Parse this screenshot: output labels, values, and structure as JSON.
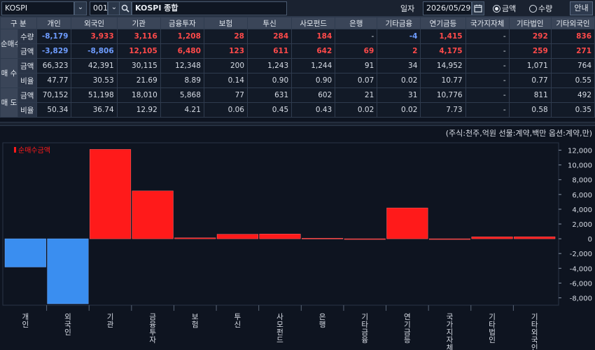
{
  "toolbar": {
    "market": "KOSPI",
    "code": "001",
    "index_name": "KOSPI 종합",
    "date_label": "일자",
    "date": "2026/05/29",
    "radio_amount": "금액",
    "radio_qty": "수량",
    "selected": "금액",
    "help": "안내"
  },
  "table": {
    "header_first": "구 분",
    "columns": [
      "개인",
      "외국인",
      "기관",
      "금융투자",
      "보험",
      "투신",
      "사모펀드",
      "은행",
      "기타금융",
      "연기금등",
      "국가지자체",
      "기타법인",
      "기타외국인"
    ],
    "groups": [
      {
        "label": "순매수",
        "rows": [
          {
            "sub": "수량",
            "values": [
              "-8,179",
              "3,933",
              "3,116",
              "1,208",
              "28",
              "284",
              "184",
              "-",
              "-4",
              "1,415",
              "-",
              "292",
              "836"
            ],
            "colored": true
          },
          {
            "sub": "금액",
            "values": [
              "-3,829",
              "-8,806",
              "12,105",
              "6,480",
              "123",
              "611",
              "642",
              "69",
              "2",
              "4,175",
              "-",
              "259",
              "271"
            ],
            "colored": true
          }
        ]
      },
      {
        "label": "매 수",
        "rows": [
          {
            "sub": "금액",
            "values": [
              "66,323",
              "42,391",
              "30,115",
              "12,348",
              "200",
              "1,243",
              "1,244",
              "91",
              "34",
              "14,952",
              "-",
              "1,071",
              "764"
            ],
            "colored": false
          },
          {
            "sub": "비율",
            "values": [
              "47.77",
              "30.53",
              "21.69",
              "8.89",
              "0.14",
              "0.90",
              "0.90",
              "0.07",
              "0.02",
              "10.77",
              "-",
              "0.77",
              "0.55"
            ],
            "colored": false
          }
        ]
      },
      {
        "label": "매 도",
        "rows": [
          {
            "sub": "금액",
            "values": [
              "70,152",
              "51,198",
              "18,010",
              "5,868",
              "77",
              "631",
              "602",
              "21",
              "31",
              "10,776",
              "-",
              "811",
              "492"
            ],
            "colored": false
          },
          {
            "sub": "비율",
            "values": [
              "50.34",
              "36.74",
              "12.92",
              "4.21",
              "0.06",
              "0.45",
              "0.43",
              "0.02",
              "0.02",
              "7.73",
              "-",
              "0.58",
              "0.35"
            ],
            "colored": false
          }
        ]
      }
    ]
  },
  "unit_note": "(주식:천주,억원 선물:계약,백만 옵션:계약,만)",
  "colors": {
    "positive": "#ff1a1a",
    "negative": "#3a8ef0",
    "background": "#0e1420"
  },
  "chart_data": {
    "type": "bar",
    "legend": "순매수금액",
    "legend_position": "top-left",
    "categories": [
      "개인",
      "외국인",
      "기관",
      "금융투자",
      "보험",
      "투신",
      "사모펀드",
      "은행",
      "기타금융",
      "연기금등",
      "국가지자체",
      "기타법인",
      "기타외국인"
    ],
    "values": [
      -3829,
      -8806,
      12105,
      6480,
      123,
      611,
      642,
      69,
      2,
      4175,
      0,
      259,
      271
    ],
    "ylim": [
      -9000,
      13000
    ],
    "yticks": [
      12000,
      10000,
      8000,
      6000,
      4000,
      2000,
      0,
      -2000,
      -4000,
      -6000,
      -8000
    ],
    "ytick_labels": [
      "12,000",
      "10,000",
      "8,000",
      "6,000",
      "4,000",
      "2,000",
      "0",
      "-2,000",
      "-4,000",
      "-6,000",
      "-8,000"
    ],
    "y_axis_side": "right",
    "grid": false
  }
}
